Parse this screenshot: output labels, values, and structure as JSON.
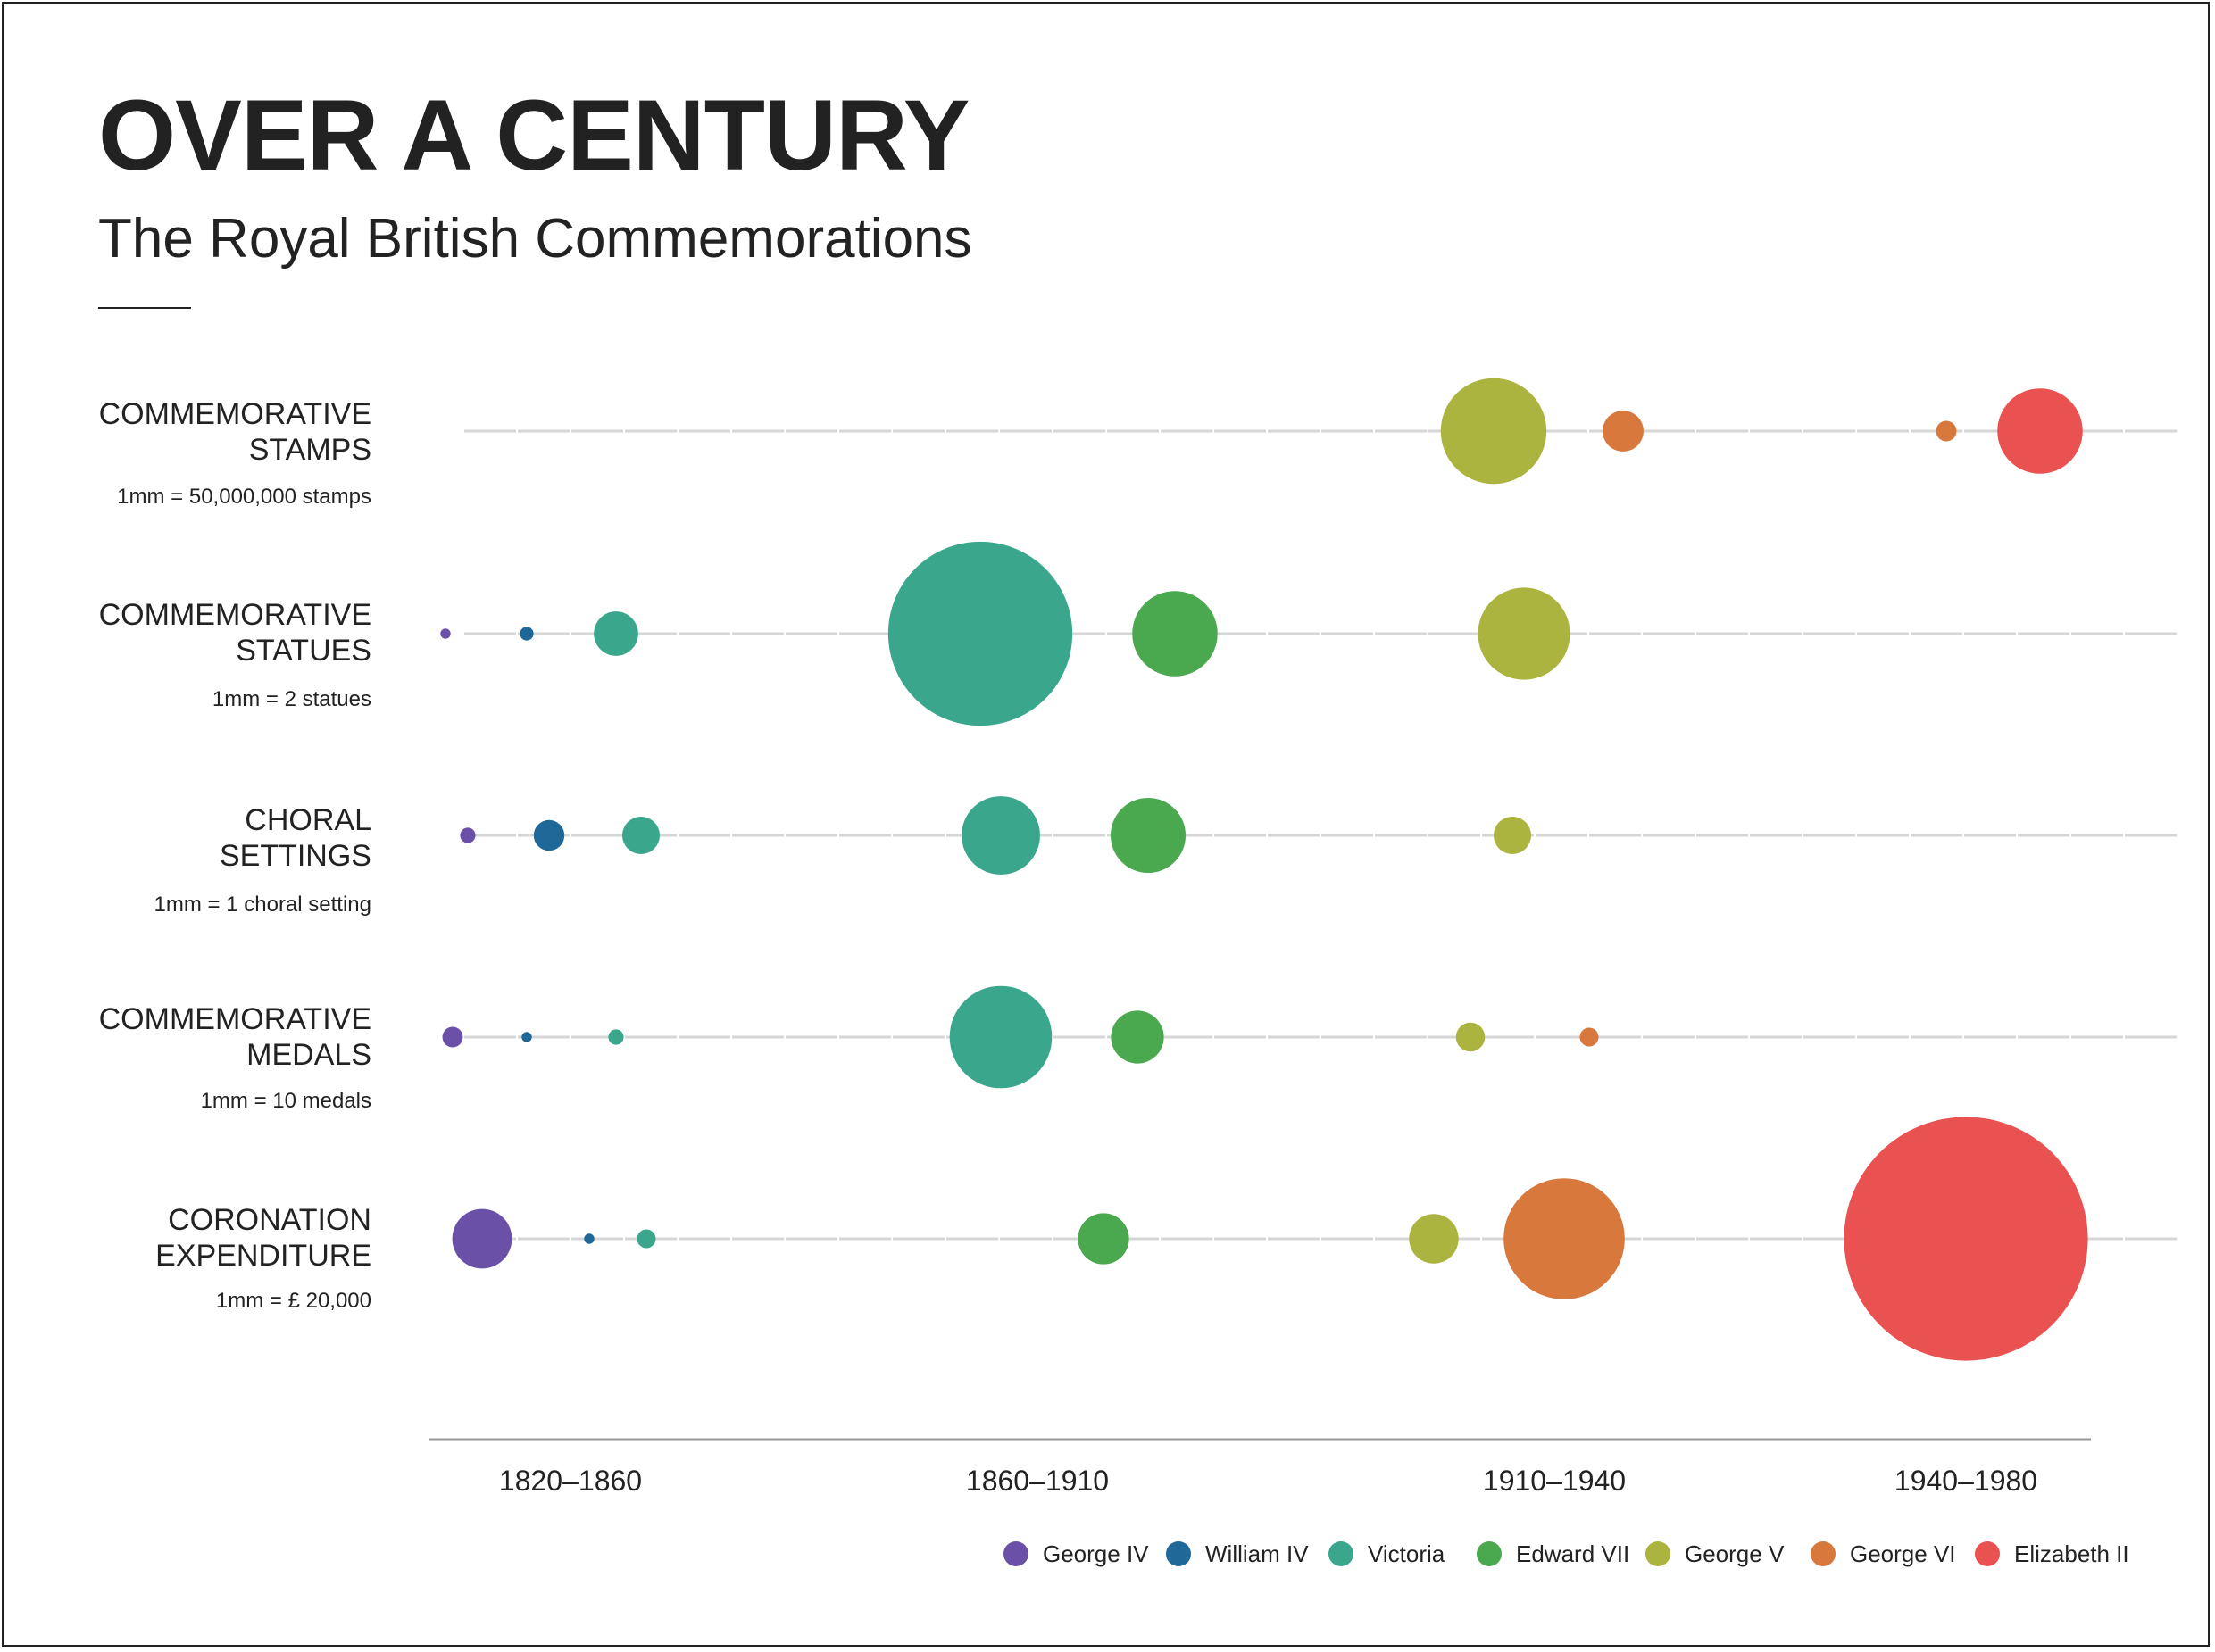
{
  "header": {
    "title": "OVER A CENTURY",
    "subtitle": "The Royal British Commemorations"
  },
  "chart_data": {
    "type": "bubble",
    "title": "OVER A CENTURY",
    "subtitle": "The Royal British Commemorations",
    "periods": [
      "1820–1860",
      "1860–1910",
      "1910–1940",
      "1940–1980"
    ],
    "legend": [
      {
        "name": "George IV",
        "color": "#6a50a7"
      },
      {
        "name": "William IV",
        "color": "#1d6896"
      },
      {
        "name": "Victoria",
        "color": "#3aa78c"
      },
      {
        "name": "Edward VII",
        "color": "#4aa84f"
      },
      {
        "name": "George V",
        "color": "#abb43e"
      },
      {
        "name": "George VI",
        "color": "#d8783d"
      },
      {
        "name": "Elizabeth II",
        "color": "#ea5252"
      }
    ],
    "rows": [
      {
        "label_line1": "COMMEMORATIVE",
        "label_line2": "STAMPS",
        "scale": "1mm = 50,000,000 stamps",
        "bubbles": [
          {
            "monarch": "George V",
            "period": "1910–1940",
            "diameter_mm": 3.1
          },
          {
            "monarch": "George VI",
            "period": "1910–1940",
            "diameter_mm": 1.2
          },
          {
            "monarch": "George VI",
            "period": "1940–1980",
            "diameter_mm": 0.6
          },
          {
            "monarch": "Elizabeth II",
            "period": "1940–1980",
            "diameter_mm": 2.5
          }
        ]
      },
      {
        "label_line1": "COMMEMORATIVE",
        "label_line2": "STATUES",
        "scale": "1mm = 2 statues",
        "bubbles": [
          {
            "monarch": "George IV",
            "period": "1820–1860",
            "diameter_mm": 0.3
          },
          {
            "monarch": "William IV",
            "period": "1820–1860",
            "diameter_mm": 0.4
          },
          {
            "monarch": "Victoria",
            "period": "1820–1860",
            "diameter_mm": 1.3
          },
          {
            "monarch": "Victoria",
            "period": "1860–1910",
            "diameter_mm": 5.4
          },
          {
            "monarch": "Edward VII",
            "period": "1860–1910",
            "diameter_mm": 2.5
          },
          {
            "monarch": "George V",
            "period": "1910–1940",
            "diameter_mm": 2.7
          }
        ]
      },
      {
        "label_line1": "CHORAL",
        "label_line2": "SETTINGS",
        "scale": "1mm = 1 choral setting",
        "bubbles": [
          {
            "monarch": "George IV",
            "period": "1820–1860",
            "diameter_mm": 0.45
          },
          {
            "monarch": "William IV",
            "period": "1820–1860",
            "diameter_mm": 0.9
          },
          {
            "monarch": "Victoria",
            "period": "1820–1860",
            "diameter_mm": 1.1
          },
          {
            "monarch": "Victoria",
            "period": "1860–1910",
            "diameter_mm": 2.3
          },
          {
            "monarch": "Edward VII",
            "period": "1860–1910",
            "diameter_mm": 2.2
          },
          {
            "monarch": "George V",
            "period": "1910–1940",
            "diameter_mm": 1.1
          }
        ]
      },
      {
        "label_line1": "COMMEMORATIVE",
        "label_line2": "MEDALS",
        "scale": "1mm = 10 medals",
        "bubbles": [
          {
            "monarch": "George IV",
            "period": "1820–1860",
            "diameter_mm": 0.6
          },
          {
            "monarch": "William IV",
            "period": "1820–1860",
            "diameter_mm": 0.3
          },
          {
            "monarch": "Victoria",
            "period": "1820–1860",
            "diameter_mm": 0.45
          },
          {
            "monarch": "Victoria",
            "period": "1860–1910",
            "diameter_mm": 3.0
          },
          {
            "monarch": "Edward VII",
            "period": "1860–1910",
            "diameter_mm": 1.55
          },
          {
            "monarch": "George V",
            "period": "1910–1940",
            "diameter_mm": 0.85
          },
          {
            "monarch": "George VI",
            "period": "1910–1940",
            "diameter_mm": 0.55
          }
        ]
      },
      {
        "label_line1": "CORONATION",
        "label_line2": "EXPENDITURE",
        "scale": "1mm = £ 20,000",
        "bubbles": [
          {
            "monarch": "George IV",
            "period": "1820–1860",
            "diameter_mm": 1.75
          },
          {
            "monarch": "William IV",
            "period": "1820–1860",
            "diameter_mm": 0.3
          },
          {
            "monarch": "Victoria",
            "period": "1820–1860",
            "diameter_mm": 0.55
          },
          {
            "monarch": "Edward VII",
            "period": "1860–1910",
            "diameter_mm": 1.5
          },
          {
            "monarch": "George V",
            "period": "1910–1940",
            "diameter_mm": 1.45
          },
          {
            "monarch": "George VI",
            "period": "1910–1940",
            "diameter_mm": 3.55
          },
          {
            "monarch": "Elizabeth II",
            "period": "1940–1980",
            "diameter_mm": 7.15
          }
        ]
      }
    ]
  }
}
